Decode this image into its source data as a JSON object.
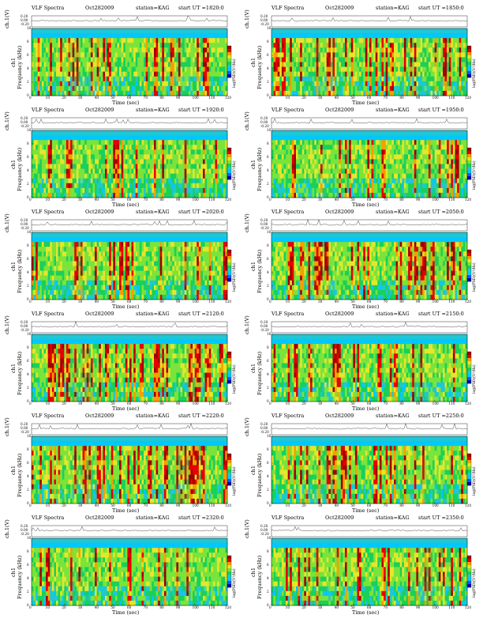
{
  "header": {
    "title": "VLF Spectra",
    "date": "Oct282009",
    "station": "station=KAG",
    "start_prefix": "start  UT  ="
  },
  "colors": {
    "background": "#1fc7d6",
    "levels": [
      "#0000aa",
      "#0060ff",
      "#00c8ff",
      "#1fc7d6",
      "#19d05a",
      "#7be43a",
      "#e6e62a",
      "#f5a000",
      "#e60000",
      "#a00000"
    ]
  },
  "chart_data": [
    {
      "type": "heatmap",
      "title": "VLF Spectra",
      "start_ut": "1820:0",
      "date": "Oct282009",
      "station": "station=KAG",
      "xlabel": "Time  (sec)",
      "ylabel": "Frequency  (kHz)",
      "ch1_label": "ch1",
      "ch_axis_label": "ch.1(V)",
      "colorbar_label": "log(PSD)(V²/Hz)",
      "xlim": [
        0,
        120
      ],
      "ylim": [
        0,
        10
      ],
      "xticks": [
        0,
        10,
        20,
        30,
        40,
        50,
        60,
        70,
        80,
        90,
        100,
        110,
        120
      ],
      "yticks": [
        0,
        2,
        4,
        6,
        8,
        10
      ],
      "ch_ticks": [
        "0.20",
        "0.00",
        "-0.20"
      ],
      "activity": 0.55
    },
    {
      "type": "heatmap",
      "title": "VLF Spectra",
      "start_ut": "1850:0",
      "date": "Oct282009",
      "station": "station=KAG",
      "xlabel": "Time  (sec)",
      "ylabel": "Frequency  (kHz)",
      "ch1_label": "ch1",
      "ch_axis_label": "ch.1(V)",
      "colorbar_label": "log(PSD)(V²/Hz)",
      "xlim": [
        0,
        120
      ],
      "ylim": [
        0,
        10
      ],
      "xticks": [
        0,
        10,
        20,
        30,
        40,
        50,
        60,
        70,
        80,
        90,
        100,
        110,
        120
      ],
      "yticks": [
        0,
        2,
        4,
        6,
        8,
        10
      ],
      "ch_ticks": [
        "0.20",
        "0.00",
        "-0.20"
      ],
      "activity": 0.6
    },
    {
      "type": "heatmap",
      "title": "VLF Spectra",
      "start_ut": "1920:0",
      "date": "Oct282009",
      "station": "station=KAG",
      "xlabel": "Time  (sec)",
      "ylabel": "Frequency  (kHz)",
      "ch1_label": "ch1",
      "ch_axis_label": "ch.1(V)",
      "colorbar_label": "log(PSD)(V²/Hz)",
      "xlim": [
        0,
        120
      ],
      "ylim": [
        0,
        10
      ],
      "xticks": [
        0,
        10,
        20,
        30,
        40,
        50,
        60,
        70,
        80,
        90,
        100,
        110,
        120
      ],
      "yticks": [
        0,
        2,
        4,
        6,
        8,
        10
      ],
      "ch_ticks": [
        "0.20",
        "0.00",
        "-0.20"
      ],
      "activity": 0.4
    },
    {
      "type": "heatmap",
      "title": "VLF Spectra",
      "start_ut": "1950:0",
      "date": "Oct282009",
      "station": "station=KAG",
      "xlabel": "Time  (sec)",
      "ylabel": "Frequency  (kHz)",
      "ch1_label": "ch1",
      "ch_axis_label": "ch.1(V)",
      "colorbar_label": "log(PSD)(V²/Hz)",
      "xlim": [
        0,
        120
      ],
      "ylim": [
        0,
        10
      ],
      "xticks": [
        0,
        10,
        20,
        30,
        40,
        50,
        60,
        70,
        80,
        90,
        100,
        110,
        120
      ],
      "yticks": [
        0,
        2,
        4,
        6,
        8,
        10
      ],
      "ch_ticks": [
        "0.20",
        "0.00",
        "-0.20"
      ],
      "activity": 0.45
    },
    {
      "type": "heatmap",
      "title": "VLF Spectra",
      "start_ut": "2020:0",
      "date": "Oct282009",
      "station": "station=KAG",
      "xlabel": "Time  (sec)",
      "ylabel": "Frequency  (kHz)",
      "ch1_label": "ch1",
      "ch_axis_label": "ch.1(V)",
      "colorbar_label": "log(PSD)(V²/Hz)",
      "xlim": [
        0,
        120
      ],
      "ylim": [
        0,
        10
      ],
      "xticks": [
        0,
        10,
        20,
        30,
        40,
        50,
        60,
        70,
        80,
        90,
        100,
        110,
        120
      ],
      "yticks": [
        0,
        2,
        4,
        6,
        8,
        10
      ],
      "ch_ticks": [
        "0.20",
        "0.00",
        "-0.20"
      ],
      "activity": 0.5
    },
    {
      "type": "heatmap",
      "title": "VLF Spectra",
      "start_ut": "2050:0",
      "date": "Oct282009",
      "station": "station=KAG",
      "xlabel": "Time  (sec)",
      "ylabel": "Frequency  (kHz)",
      "ch1_label": "ch1",
      "ch_axis_label": "ch.1(V)",
      "colorbar_label": "log(PSD)(V²/Hz)",
      "xlim": [
        0,
        120
      ],
      "ylim": [
        0,
        10
      ],
      "xticks": [
        0,
        10,
        20,
        30,
        40,
        50,
        60,
        70,
        80,
        90,
        100,
        110,
        120
      ],
      "yticks": [
        0,
        2,
        4,
        6,
        8,
        10
      ],
      "ch_ticks": [
        "0.20",
        "0.00",
        "-0.20"
      ],
      "activity": 0.6
    },
    {
      "type": "heatmap",
      "title": "VLF Spectra",
      "start_ut": "2120:0",
      "date": "Oct282009",
      "station": "station=KAG",
      "xlabel": "Time  (sec)",
      "ylabel": "Frequency  (kHz)",
      "ch1_label": "ch1",
      "ch_axis_label": "ch.1(V)",
      "colorbar_label": "log(PSD)(V²/Hz)",
      "xlim": [
        0,
        120
      ],
      "ylim": [
        0,
        10
      ],
      "xticks": [
        0,
        10,
        20,
        30,
        40,
        50,
        60,
        70,
        80,
        90,
        100,
        110,
        120
      ],
      "yticks": [
        0,
        2,
        4,
        6,
        8,
        10
      ],
      "ch_ticks": [
        "0.20",
        "0.00",
        "-0.20"
      ],
      "activity": 0.65
    },
    {
      "type": "heatmap",
      "title": "VLF Spectra",
      "start_ut": "2150:0",
      "date": "Oct282009",
      "station": "station=KAG",
      "xlabel": "Time  (sec)",
      "ylabel": "Frequency  (kHz)",
      "ch1_label": "ch1",
      "ch_axis_label": "ch.1(V)",
      "colorbar_label": "log(PSD)(V²/Hz)",
      "xlim": [
        0,
        120
      ],
      "ylim": [
        0,
        10
      ],
      "xticks": [
        0,
        10,
        20,
        30,
        40,
        50,
        60,
        70,
        80,
        90,
        100,
        110,
        120
      ],
      "yticks": [
        0,
        2,
        4,
        6,
        8,
        10
      ],
      "ch_ticks": [
        "0.20",
        "0.00",
        "-0.20"
      ],
      "activity": 0.45
    },
    {
      "type": "heatmap",
      "title": "VLF Spectra",
      "start_ut": "2220:0",
      "date": "Oct282009",
      "station": "station=KAG",
      "xlabel": "Time  (sec)",
      "ylabel": "Frequency  (kHz)",
      "ch1_label": "ch1",
      "ch_axis_label": "ch.1(V)",
      "colorbar_label": "log(PSD)(V²/Hz)",
      "xlim": [
        0,
        120
      ],
      "ylim": [
        0,
        10
      ],
      "xticks": [
        0,
        10,
        20,
        30,
        40,
        50,
        60,
        70,
        80,
        90,
        100,
        110,
        120
      ],
      "yticks": [
        0,
        2,
        4,
        6,
        8,
        10
      ],
      "ch_ticks": [
        "0.20",
        "0.00",
        "-0.20"
      ],
      "activity": 0.55
    },
    {
      "type": "heatmap",
      "title": "VLF Spectra",
      "start_ut": "2250:0",
      "date": "Oct282009",
      "station": "station=KAG",
      "xlabel": "Time  (sec)",
      "ylabel": "Frequency  (kHz)",
      "ch1_label": "ch1",
      "ch_axis_label": "ch.1(V)",
      "colorbar_label": "log(PSD)(V²/Hz)",
      "xlim": [
        0,
        120
      ],
      "ylim": [
        0,
        10
      ],
      "xticks": [
        0,
        10,
        20,
        30,
        40,
        50,
        60,
        70,
        80,
        90,
        100,
        110,
        120
      ],
      "yticks": [
        0,
        2,
        4,
        6,
        8,
        10
      ],
      "ch_ticks": [
        "0.20",
        "0.00",
        "-0.20"
      ],
      "activity": 0.5
    },
    {
      "type": "heatmap",
      "title": "VLF Spectra",
      "start_ut": "2320:0",
      "date": "Oct282009",
      "station": "station=KAG",
      "xlabel": "Time  (sec)",
      "ylabel": "Frequency  (kHz)",
      "ch1_label": "ch1",
      "ch_axis_label": "ch.1(V)",
      "colorbar_label": "log(PSD)(V²/Hz)",
      "xlim": [
        0,
        120
      ],
      "ylim": [
        0,
        10
      ],
      "xticks": [
        0,
        10,
        20,
        30,
        40,
        50,
        60,
        70,
        80,
        90,
        100,
        110,
        120
      ],
      "yticks": [
        0,
        2,
        4,
        6,
        8,
        10
      ],
      "ch_ticks": [
        "0.20",
        "0.00",
        "-0.20"
      ],
      "activity": 0.35
    },
    {
      "type": "heatmap",
      "title": "VLF Spectra",
      "start_ut": "2350:0",
      "date": "Oct282009",
      "station": "station=KAG",
      "xlabel": "Time  (sec)",
      "ylabel": "Frequency  (kHz)",
      "ch1_label": "ch1",
      "ch_axis_label": "ch.1(V)",
      "colorbar_label": "log(PSD)(V²/Hz)",
      "xlim": [
        0,
        120
      ],
      "ylim": [
        0,
        10
      ],
      "xticks": [
        0,
        10,
        20,
        30,
        40,
        50,
        60,
        70,
        80,
        90,
        100,
        110,
        120
      ],
      "yticks": [
        0,
        2,
        4,
        6,
        8,
        10
      ],
      "ch_ticks": [
        "0.20",
        "0.00",
        "-0.20"
      ],
      "activity": 0.35
    }
  ]
}
